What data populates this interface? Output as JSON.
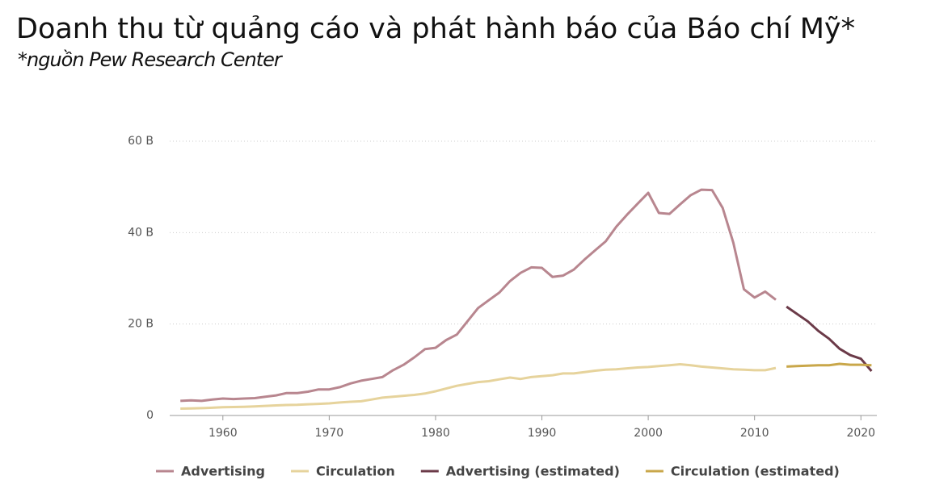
{
  "chart_data": {
    "type": "line",
    "title": "Doanh thu từ quảng cáo và phát hành báo của Báo chí Mỹ*",
    "subtitle": "*nguồn Pew Research Center",
    "x": [
      1956,
      1957,
      1958,
      1959,
      1960,
      1961,
      1962,
      1963,
      1964,
      1965,
      1966,
      1967,
      1968,
      1969,
      1970,
      1971,
      1972,
      1973,
      1974,
      1975,
      1976,
      1977,
      1978,
      1979,
      1980,
      1981,
      1982,
      1983,
      1984,
      1985,
      1986,
      1987,
      1988,
      1989,
      1990,
      1991,
      1992,
      1993,
      1994,
      1995,
      1996,
      1997,
      1998,
      1999,
      2000,
      2001,
      2002,
      2003,
      2004,
      2005,
      2006,
      2007,
      2008,
      2009,
      2010,
      2011,
      2012,
      2013,
      2014,
      2015,
      2016,
      2017,
      2018,
      2019,
      2020,
      2021
    ],
    "series": [
      {
        "name": "Advertising",
        "color": "#b8868f",
        "values": [
          3.2,
          3.3,
          3.2,
          3.5,
          3.7,
          3.6,
          3.7,
          3.8,
          4.1,
          4.4,
          4.9,
          4.9,
          5.2,
          5.7,
          5.7,
          6.2,
          7.0,
          7.6,
          8.0,
          8.4,
          9.9,
          11.1,
          12.7,
          14.5,
          14.8,
          16.5,
          17.7,
          20.6,
          23.5,
          25.2,
          26.9,
          29.4,
          31.2,
          32.4,
          32.3,
          30.3,
          30.6,
          31.9,
          34.1,
          36.1,
          38.1,
          41.3,
          43.9,
          46.3,
          48.7,
          44.3,
          44.1,
          46.2,
          48.2,
          49.4,
          49.3,
          45.4,
          37.8,
          27.6,
          25.8,
          27.1,
          25.3,
          null,
          null,
          null,
          null,
          null,
          null,
          null,
          null,
          null
        ]
      },
      {
        "name": "Circulation",
        "color": "#e6d39c",
        "values": [
          1.5,
          1.55,
          1.6,
          1.7,
          1.8,
          1.85,
          1.9,
          2.0,
          2.1,
          2.2,
          2.3,
          2.35,
          2.45,
          2.55,
          2.65,
          2.85,
          3.0,
          3.1,
          3.5,
          3.9,
          4.1,
          4.3,
          4.5,
          4.8,
          5.3,
          5.9,
          6.5,
          6.9,
          7.3,
          7.5,
          7.9,
          8.3,
          8.0,
          8.4,
          8.6,
          8.8,
          9.2,
          9.2,
          9.5,
          9.8,
          10.0,
          10.1,
          10.3,
          10.5,
          10.6,
          10.8,
          11.0,
          11.2,
          11.0,
          10.7,
          10.5,
          10.3,
          10.1,
          10.0,
          9.9,
          9.9,
          10.4,
          null,
          null,
          null,
          null,
          null,
          null,
          null,
          null,
          null
        ]
      },
      {
        "name": "Advertising (estimated)",
        "color": "#6b3a48",
        "values": [
          null,
          null,
          null,
          null,
          null,
          null,
          null,
          null,
          null,
          null,
          null,
          null,
          null,
          null,
          null,
          null,
          null,
          null,
          null,
          null,
          null,
          null,
          null,
          null,
          null,
          null,
          null,
          null,
          null,
          null,
          null,
          null,
          null,
          null,
          null,
          null,
          null,
          null,
          null,
          null,
          null,
          null,
          null,
          null,
          null,
          null,
          null,
          null,
          null,
          null,
          null,
          null,
          null,
          null,
          null,
          null,
          null,
          23.8,
          22.2,
          20.6,
          18.5,
          16.8,
          14.6,
          13.2,
          12.4,
          9.7
        ]
      },
      {
        "name": "Circulation (estimated)",
        "color": "#c9a74a",
        "values": [
          null,
          null,
          null,
          null,
          null,
          null,
          null,
          null,
          null,
          null,
          null,
          null,
          null,
          null,
          null,
          null,
          null,
          null,
          null,
          null,
          null,
          null,
          null,
          null,
          null,
          null,
          null,
          null,
          null,
          null,
          null,
          null,
          null,
          null,
          null,
          null,
          null,
          null,
          null,
          null,
          null,
          null,
          null,
          null,
          null,
          null,
          null,
          null,
          null,
          null,
          null,
          null,
          null,
          null,
          null,
          null,
          null,
          10.7,
          10.8,
          10.9,
          11.0,
          11.0,
          11.3,
          11.1,
          11.1,
          11.0
        ]
      }
    ],
    "xlim": [
      1955,
      2021.5
    ],
    "xticks": [
      1960,
      1970,
      1980,
      1990,
      2000,
      2010,
      2020
    ],
    "ylim": [
      0,
      60
    ],
    "yticks": [
      0,
      {
        "value": 20,
        "label": "20 B"
      },
      {
        "value": 40,
        "label": "40 B"
      },
      {
        "value": 60,
        "label": "60 B"
      }
    ],
    "grid": true
  }
}
